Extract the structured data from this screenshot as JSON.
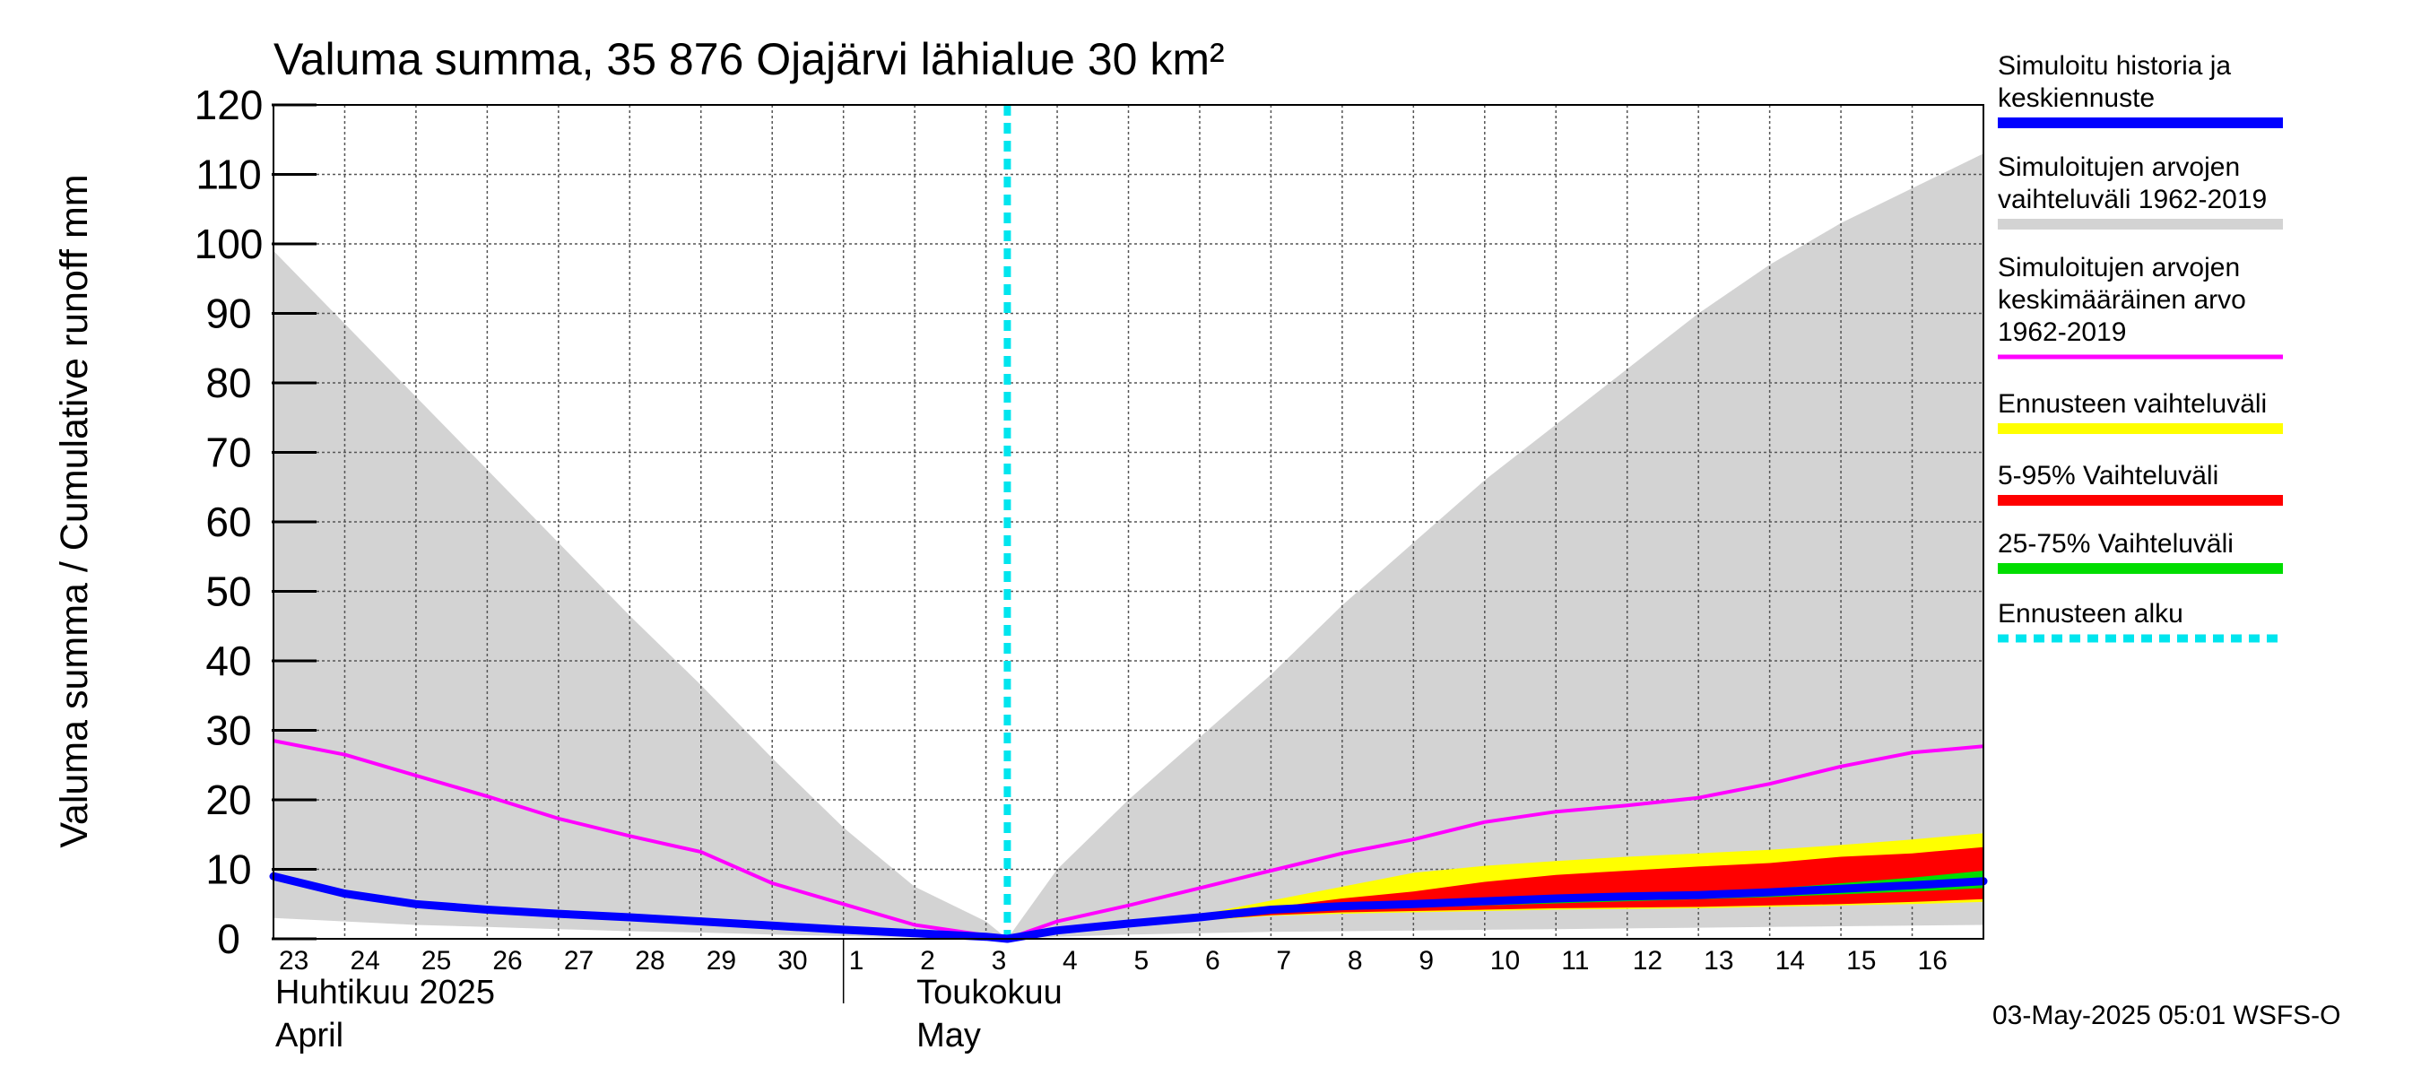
{
  "chart_data": {
    "type": "area",
    "title": "Valuma summa, 35 876 Ojajärvi lähialue 30 km²",
    "ylabel": "Valuma summa / Cumulative runoff    mm",
    "ylim": [
      0,
      120
    ],
    "yticks": [
      "0",
      "10",
      "20",
      "30",
      "40",
      "50",
      "60",
      "70",
      "80",
      "90",
      "100",
      "110",
      "120"
    ],
    "x_labels": [
      "23",
      "24",
      "25",
      "26",
      "27",
      "28",
      "29",
      "30",
      "1",
      "2",
      "3",
      "4",
      "5",
      "6",
      "7",
      "8",
      "9",
      "10",
      "11",
      "12",
      "13",
      "14",
      "15",
      "16"
    ],
    "month_labels": [
      {
        "line1": "Huhtikuu  2025",
        "line2": "April"
      },
      {
        "line1": "Toukokuu",
        "line2": "May"
      }
    ],
    "grid": true,
    "legend_position": "right",
    "forecast_start_day": 9.8,
    "series": [
      {
        "name": "Simuloitu historia ja keskiennuste",
        "color": "#0000ff",
        "x": [
          -0.5,
          0.5,
          1.5,
          2.5,
          3.5,
          4.5,
          5.5,
          6.5,
          7.5,
          8.5,
          9.5,
          9.8,
          10.5,
          11.5,
          12.5,
          13.5,
          14.5,
          15.5,
          16.5,
          17.5,
          18.5,
          19.5,
          20.5,
          21.5,
          22.5,
          23.5
        ],
        "y": [
          9,
          6.5,
          5,
          4.2,
          3.6,
          3.1,
          2.5,
          1.9,
          1.3,
          0.8,
          0.3,
          0,
          1.2,
          2.2,
          3.1,
          4.2,
          4.7,
          5.0,
          5.4,
          5.8,
          6.1,
          6.3,
          6.7,
          7.2,
          7.7,
          8.3
        ]
      },
      {
        "name": "Simuloitujen arvojen vaihteluväli 1962-2019",
        "color": "#d3d3d3",
        "x": [
          -0.5,
          0.5,
          1.5,
          2.5,
          3.5,
          4.5,
          5.5,
          6.5,
          7.5,
          8.5,
          9.5,
          9.8,
          10.5,
          11.5,
          12.5,
          13.5,
          14.5,
          15.5,
          16.5,
          17.5,
          18.5,
          19.5,
          20.5,
          21.5,
          22.5,
          23.5
        ],
        "upper": [
          99,
          88.5,
          78,
          67.5,
          57,
          46.5,
          36.5,
          26,
          16,
          7.5,
          2.5,
          0,
          10,
          20,
          29,
          38,
          48,
          57,
          66,
          74,
          82,
          90,
          97,
          103,
          108,
          113
        ],
        "lower": [
          3,
          2.5,
          2,
          1.7,
          1.4,
          1.1,
          0.9,
          0.6,
          0.4,
          0.2,
          0.1,
          0,
          0.3,
          0.6,
          0.8,
          1,
          1.1,
          1.2,
          1.3,
          1.4,
          1.5,
          1.6,
          1.7,
          1.8,
          1.9,
          2
        ]
      },
      {
        "name": "Simuloitujen arvojen keskimääräinen arvo 1962-2019",
        "color": "#ff00ff",
        "x": [
          -0.5,
          0.5,
          1.5,
          2.5,
          3.5,
          4.5,
          5.5,
          6.5,
          7.5,
          8.5,
          9.5,
          9.8,
          10.5,
          11.5,
          12.5,
          13.5,
          14.5,
          15.5,
          16.5,
          17.5,
          18.5,
          19.5,
          20.5,
          21.5,
          22.5,
          23.5
        ],
        "y": [
          28.5,
          26.5,
          23.5,
          20.5,
          17.3,
          14.8,
          12.5,
          8,
          5,
          2,
          0.5,
          0,
          2.5,
          4.8,
          7.3,
          9.8,
          12.3,
          14.3,
          16.8,
          18.3,
          19.2,
          20.3,
          22.3,
          24.8,
          26.8,
          27.7
        ]
      },
      {
        "name": "Ennusteen vaihteluväli",
        "color": "#ffff00",
        "x": [
          9.8,
          10.5,
          11.5,
          12.5,
          13.5,
          14.5,
          15.5,
          16.5,
          17.5,
          18.5,
          19.5,
          20.5,
          21.5,
          22.5,
          23.5
        ],
        "upper": [
          0,
          1.3,
          2.4,
          3.5,
          5.5,
          7.5,
          9.5,
          10.5,
          11.2,
          11.8,
          12.3,
          12.8,
          13.5,
          14.3,
          15.2
        ],
        "lower": [
          0,
          1.1,
          2.0,
          2.6,
          3.3,
          3.6,
          3.8,
          4.0,
          4.2,
          4.3,
          4.4,
          4.6,
          4.8,
          5.0,
          5.3
        ]
      },
      {
        "name": "5-95% Vaihteluväli",
        "color": "#ff0000",
        "x": [
          9.8,
          10.5,
          11.5,
          12.5,
          13.5,
          14.5,
          15.5,
          16.5,
          17.5,
          18.5,
          19.5,
          20.5,
          21.5,
          22.5,
          23.5
        ],
        "upper": [
          0,
          1.3,
          2.3,
          3.2,
          4.5,
          5.8,
          6.8,
          8.2,
          9.2,
          9.8,
          10.4,
          10.9,
          11.8,
          12.3,
          13.2
        ],
        "lower": [
          0,
          1.1,
          2.0,
          2.7,
          3.4,
          3.8,
          4.0,
          4.2,
          4.4,
          4.5,
          4.6,
          4.8,
          5.0,
          5.3,
          5.7
        ]
      },
      {
        "name": "25-75% Vaihteluväli",
        "color": "#00dd00",
        "x": [
          9.8,
          10.5,
          11.5,
          12.5,
          13.5,
          14.5,
          15.5,
          16.5,
          17.5,
          18.5,
          19.5,
          20.5,
          21.5,
          22.5,
          23.5
        ],
        "upper": [
          0,
          1.2,
          2.2,
          3.0,
          4.2,
          4.9,
          5.2,
          5.6,
          6.0,
          6.4,
          6.8,
          7.2,
          8.0,
          8.8,
          9.8
        ],
        "lower": [
          0,
          1.1,
          2.1,
          2.8,
          3.7,
          4.2,
          4.5,
          4.8,
          5.1,
          5.4,
          5.7,
          6.0,
          6.4,
          6.8,
          7.3
        ]
      },
      {
        "name": "Ennusteen alku",
        "color": "#00e5ee"
      }
    ],
    "legend": [
      {
        "lines": [
          "Simuloitu historia ja",
          "keskiennuste"
        ],
        "color": "#0000ff",
        "style": "solid"
      },
      {
        "lines": [
          "Simuloitujen arvojen",
          "vaihteluväli 1962-2019"
        ],
        "color": "#d3d3d3",
        "style": "solid"
      },
      {
        "lines": [
          "Simuloitujen arvojen",
          "keskimääräinen arvo",
          "   1962-2019"
        ],
        "color": "#ff00ff",
        "style": "thin"
      },
      {
        "lines": [
          "Ennusteen vaihteluväli"
        ],
        "color": "#ffff00",
        "style": "solid"
      },
      {
        "lines": [
          "5-95% Vaihteluväli"
        ],
        "color": "#ff0000",
        "style": "solid"
      },
      {
        "lines": [
          "25-75% Vaihteluväli"
        ],
        "color": "#00dd00",
        "style": "solid"
      },
      {
        "lines": [
          "Ennusteen alku"
        ],
        "color": "#00e5ee",
        "style": "dashed"
      }
    ],
    "footer": "03-May-2025 05:01 WSFS-O"
  }
}
